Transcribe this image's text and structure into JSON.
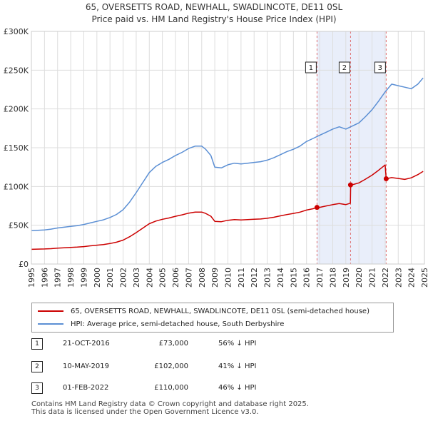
{
  "title_line1": "65, OVERSETTS ROAD, NEWHALL, SWADLINCOTE, DE11 0SL",
  "title_line2": "Price paid vs. HM Land Registry's House Price Index (HPI)",
  "legend": {
    "red_label": "65, OVERSETTS ROAD, NEWHALL, SWADLINCOTE, DE11 0SL (semi-detached house)",
    "blue_label": "HPI: Average price, semi-detached house, South Derbyshire",
    "red_color": "#cc0000",
    "blue_color": "#5b8fd4"
  },
  "sales": [
    {
      "num": "1",
      "date": "21-OCT-2016",
      "price": "£73,000",
      "hpi": "56% ↓ HPI"
    },
    {
      "num": "2",
      "date": "10-MAY-2019",
      "price": "£102,000",
      "hpi": "41% ↓ HPI"
    },
    {
      "num": "3",
      "date": "01-FEB-2022",
      "price": "£110,000",
      "hpi": "46% ↓ HPI"
    }
  ],
  "footer_line1": "Contains HM Land Registry data © Crown copyright and database right 2025.",
  "footer_line2": "This data is licensed under the Open Government Licence v3.0.",
  "chart_data": {
    "type": "line",
    "title": "65, OVERSETTS ROAD, NEWHALL, SWADLINCOTE, DE11 0SL",
    "subtitle": "Price paid vs. HM Land Registry's House Price Index (HPI)",
    "xlabel": "",
    "ylabel": "",
    "xlim": [
      1995,
      2025
    ],
    "ylim": [
      0,
      300000
    ],
    "x_ticks": [
      "1995",
      "1996",
      "1997",
      "1998",
      "1999",
      "2000",
      "2001",
      "2002",
      "2003",
      "2004",
      "2005",
      "2006",
      "2007",
      "2008",
      "2009",
      "2010",
      "2011",
      "2012",
      "2013",
      "2014",
      "2015",
      "2016",
      "2017",
      "2018",
      "2019",
      "2020",
      "2021",
      "2022",
      "2023",
      "2024",
      "2025"
    ],
    "y_ticks": [
      {
        "value": 0,
        "label": "£0"
      },
      {
        "value": 50000,
        "label": "£50K"
      },
      {
        "value": 100000,
        "label": "£100K"
      },
      {
        "value": 150000,
        "label": "£150K"
      },
      {
        "value": 200000,
        "label": "£200K"
      },
      {
        "value": 250000,
        "label": "£250K"
      },
      {
        "value": 300000,
        "label": "£300K"
      }
    ],
    "grid": true,
    "series": [
      {
        "name": "HPI: Average price, semi-detached house, South Derbyshire",
        "color": "#5b8fd4",
        "x": [
          1995,
          1995.5,
          1996,
          1996.5,
          1997,
          1997.5,
          1998,
          1998.5,
          1999,
          1999.5,
          2000,
          2000.5,
          2001,
          2001.5,
          2002,
          2002.5,
          2003,
          2003.5,
          2004,
          2004.5,
          2005,
          2005.5,
          2006,
          2006.5,
          2007,
          2007.5,
          2008,
          2008.3,
          2008.7,
          2009,
          2009.5,
          2010,
          2010.5,
          2011,
          2011.5,
          2012,
          2012.5,
          2013,
          2013.5,
          2014,
          2014.5,
          2015,
          2015.5,
          2016,
          2016.5,
          2017,
          2017.5,
          2018,
          2018.5,
          2019,
          2019.5,
          2020,
          2020.5,
          2021,
          2021.5,
          2022,
          2022.5,
          2023,
          2023.5,
          2024,
          2024.5,
          2024.9
        ],
        "y": [
          43000,
          43500,
          44000,
          45000,
          46500,
          47500,
          48500,
          49500,
          51000,
          53000,
          55000,
          57000,
          60000,
          64000,
          70000,
          80000,
          92000,
          105000,
          118000,
          126000,
          131000,
          135000,
          140000,
          144000,
          149000,
          152000,
          152000,
          148000,
          140000,
          125000,
          124000,
          128000,
          130000,
          129000,
          130000,
          131000,
          132000,
          134000,
          137000,
          141000,
          145000,
          148000,
          152000,
          158000,
          162000,
          166000,
          170000,
          174000,
          177000,
          174000,
          178000,
          182000,
          190000,
          199000,
          210000,
          222000,
          232000,
          230000,
          228000,
          226000,
          232000,
          240000
        ]
      },
      {
        "name": "65, OVERSETTS ROAD, NEWHALL, SWADLINCOTE, DE11 0SL (semi-detached house)",
        "color": "#cc0000",
        "x": [
          1995,
          1995.5,
          1996,
          1996.5,
          1997,
          1997.5,
          1998,
          1998.5,
          1999,
          1999.5,
          2000,
          2000.5,
          2001,
          2001.5,
          2002,
          2002.5,
          2003,
          2003.5,
          2004,
          2004.5,
          2005,
          2005.5,
          2006,
          2006.5,
          2007,
          2007.5,
          2008,
          2008.3,
          2008.7,
          2009,
          2009.5,
          2010,
          2010.5,
          2011,
          2011.5,
          2012,
          2012.5,
          2013,
          2013.5,
          2014,
          2014.5,
          2015,
          2015.5,
          2016,
          2016.5,
          2016.8,
          2017,
          2017.5,
          2018,
          2018.5,
          2019,
          2019.35,
          2019.37,
          2019.5,
          2020,
          2020.5,
          2021,
          2021.5,
          2022,
          2022.08,
          2022.5,
          2023,
          2023.5,
          2024,
          2024.5,
          2024.9
        ],
        "y": [
          19000,
          19200,
          19400,
          19800,
          20500,
          21000,
          21400,
          21800,
          22500,
          23500,
          24300,
          25100,
          26400,
          28200,
          30800,
          35200,
          40500,
          46200,
          52000,
          55400,
          57700,
          59400,
          61600,
          63400,
          65600,
          66900,
          67000,
          65200,
          61700,
          55000,
          54600,
          56400,
          57300,
          56800,
          57300,
          57700,
          58100,
          59000,
          60300,
          62100,
          63800,
          65200,
          66900,
          69600,
          71300,
          73000,
          73100,
          74900,
          76600,
          78000,
          76700,
          78400,
          102000,
          102200,
          104600,
          109400,
          114600,
          120900,
          127700,
          110000,
          111400,
          110300,
          109100,
          111200,
          115300,
          119500
        ]
      }
    ],
    "markers": [
      {
        "label": "1",
        "x": 2016.8,
        "date": "21-OCT-2016",
        "price": 73000,
        "hpi_diff": "56% ↓ HPI"
      },
      {
        "label": "2",
        "x": 2019.36,
        "date": "10-MAY-2019",
        "price": 102000,
        "hpi_diff": "41% ↓ HPI"
      },
      {
        "label": "3",
        "x": 2022.08,
        "date": "01-FEB-2022",
        "price": 110000,
        "hpi_diff": "46% ↓ HPI"
      }
    ]
  }
}
